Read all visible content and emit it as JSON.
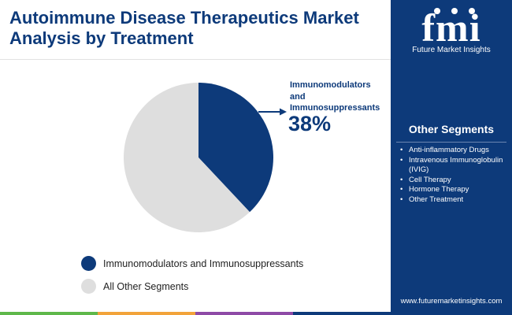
{
  "header": {
    "title_line1": "Autoimmune Disease Therapeutics Market",
    "title_line2": "Analysis by Treatment"
  },
  "logo": {
    "letters": "fmi",
    "caption": "Future Market Insights"
  },
  "sidebar": {
    "title": "Other Segments",
    "items": [
      "Anti-inflammatory Drugs",
      "Intravenous Immunoglobulin (IVIG)",
      "Cell Therapy",
      "Hormone Therapy",
      "Other Treatment"
    ],
    "website": "www.futuremarketinsights.com"
  },
  "colors": {
    "brand_navy": "#0d3a7a",
    "other_gray": "#dedede",
    "bar_colors": [
      "#5eb84a",
      "#f2a33a",
      "#8e4aa6",
      "#0d3a7a"
    ]
  },
  "chart_data": {
    "type": "pie",
    "title": "Autoimmune Disease Therapeutics Market Analysis by Treatment",
    "slices": [
      {
        "label": "Immunomodulators and Immunosuppressants",
        "value": 38,
        "color": "#0d3a7a"
      },
      {
        "label": "All Other Segments",
        "value": 62,
        "color": "#dedede"
      }
    ],
    "callout": {
      "label_lines": [
        "Immunomodulators",
        "and",
        "Immunosuppressants"
      ],
      "value_text": "38%"
    },
    "legend": [
      {
        "label": "Immunomodulators and Immunosuppressants",
        "color": "#0d3a7a"
      },
      {
        "label": "All Other Segments",
        "color": "#dedede"
      }
    ],
    "legend_position": "bottom-left"
  }
}
